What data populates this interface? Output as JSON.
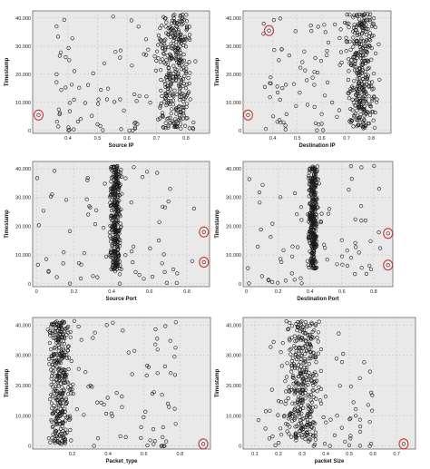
{
  "chart_data": [
    {
      "type": "scatter",
      "xlabel": "Source IP",
      "ylabel": "Timestamp",
      "xlim": [
        0.28,
        0.88
      ],
      "ylim": [
        -1000,
        42500
      ],
      "xticks": [
        0.4,
        0.5,
        0.6,
        0.7,
        0.8
      ],
      "yticks": [
        0,
        10000,
        20000,
        30000,
        40000
      ],
      "ytick_labels": [
        "0",
        "10,000",
        "20,000",
        "30,000",
        "40,000"
      ],
      "grid": true,
      "cluster": {
        "x_range": [
          0.68,
          0.84
        ],
        "y_range": [
          500,
          41500
        ]
      },
      "sparse": {
        "x_range": [
          0.36,
          0.68
        ],
        "y_range": [
          0,
          41000
        ]
      },
      "highlighted": [
        {
          "x": 0.3,
          "y": 5500
        }
      ]
    },
    {
      "type": "scatter",
      "xlabel": "Destination IP",
      "ylabel": "Timestamp",
      "xlim": [
        0.28,
        0.88
      ],
      "ylim": [
        -1000,
        42500
      ],
      "xticks": [
        0.4,
        0.5,
        0.6,
        0.7,
        0.8
      ],
      "yticks": [
        0,
        10000,
        20000,
        30000,
        40000
      ],
      "ytick_labels": [
        "0",
        "10,000",
        "20,000",
        "30,000",
        "40,000"
      ],
      "grid": true,
      "cluster": {
        "x_range": [
          0.68,
          0.84
        ],
        "y_range": [
          500,
          41500
        ]
      },
      "sparse": {
        "x_range": [
          0.36,
          0.68
        ],
        "y_range": [
          0,
          41000
        ]
      },
      "highlighted": [
        {
          "x": 0.3,
          "y": 5500
        },
        {
          "x": 0.385,
          "y": 35500
        }
      ]
    },
    {
      "type": "scatter",
      "xlabel": "Source Port",
      "ylabel": "Timestamp",
      "xlim": [
        -0.02,
        0.92
      ],
      "ylim": [
        -1000,
        42500
      ],
      "xticks": [
        0.0,
        0.2,
        0.4,
        0.6,
        0.8
      ],
      "yticks": [
        0,
        10000,
        20000,
        30000,
        40000
      ],
      "ytick_labels": [
        "0",
        "10,000",
        "20,000",
        "30,000",
        "40,000"
      ],
      "grid": true,
      "cluster": {
        "x_range": [
          0.38,
          0.46
        ],
        "y_range": [
          5000,
          41000
        ]
      },
      "sparse": {
        "x_range": [
          0.0,
          0.85
        ],
        "y_range": [
          0,
          41000
        ]
      },
      "highlighted": [
        {
          "x": 0.89,
          "y": 18000
        },
        {
          "x": 0.89,
          "y": 7500
        }
      ]
    },
    {
      "type": "scatter",
      "xlabel": "Destination Port",
      "ylabel": "Timestamp",
      "xlim": [
        -0.02,
        0.92
      ],
      "ylim": [
        -1000,
        42500
      ],
      "xticks": [
        0.0,
        0.2,
        0.4,
        0.6,
        0.8
      ],
      "yticks": [
        0,
        10000,
        20000,
        30000,
        40000
      ],
      "ytick_labels": [
        "0",
        "10,000",
        "20,000",
        "30,000",
        "40,000"
      ],
      "grid": true,
      "cluster": {
        "x_range": [
          0.38,
          0.46
        ],
        "y_range": [
          5000,
          41000
        ]
      },
      "sparse": {
        "x_range": [
          0.0,
          0.85
        ],
        "y_range": [
          0,
          41000
        ]
      },
      "highlighted": [
        {
          "x": 0.89,
          "y": 17500
        },
        {
          "x": 0.89,
          "y": 6500
        }
      ]
    },
    {
      "type": "scatter",
      "xlabel": "Packet_type",
      "ylabel": "Timestamp",
      "xlim": [
        -0.02,
        0.97
      ],
      "ylim": [
        -1000,
        42500
      ],
      "xticks": [
        0.2,
        0.4,
        0.6,
        0.8
      ],
      "yticks": [
        0,
        10000,
        20000,
        30000,
        40000
      ],
      "ytick_labels": [
        "0",
        "10,000",
        "20,000",
        "30,000",
        "40,000"
      ],
      "grid": true,
      "cluster": {
        "x_range": [
          0.04,
          0.22
        ],
        "y_range": [
          500,
          41500
        ]
      },
      "sparse": {
        "x_range": [
          0.22,
          0.8
        ],
        "y_range": [
          0,
          41000
        ]
      },
      "highlighted": [
        {
          "x": 0.93,
          "y": 700
        }
      ]
    },
    {
      "type": "scatter",
      "xlabel": "packet Size",
      "ylabel": "Timestamp",
      "xlim": [
        0.05,
        0.78
      ],
      "ylim": [
        -1000,
        42500
      ],
      "xticks": [
        0.1,
        0.2,
        0.3,
        0.4,
        0.5,
        0.6,
        0.7
      ],
      "yticks": [
        0,
        10000,
        20000,
        30000,
        40000
      ],
      "ytick_labels": [
        "0",
        "10,000",
        "20,000",
        "30,000",
        "40,000"
      ],
      "grid": true,
      "cluster": {
        "x_range": [
          0.2,
          0.4
        ],
        "y_range": [
          2000,
          41500
        ]
      },
      "sparse": {
        "x_range": [
          0.1,
          0.6
        ],
        "y_range": [
          0,
          41000
        ]
      },
      "highlighted": [
        {
          "x": 0.73,
          "y": 700
        }
      ]
    }
  ]
}
